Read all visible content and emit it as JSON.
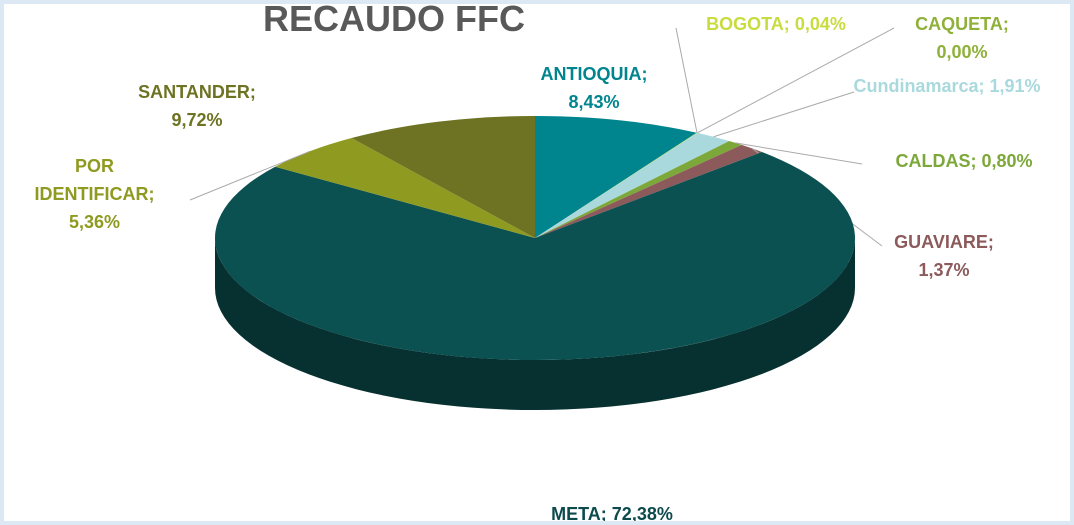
{
  "chart_data": {
    "type": "pie",
    "title": "RECAUDO FFC",
    "categories": [
      "ANTIOQUIA;",
      "BOGOTA;",
      "CAQUETA;",
      "Cundinamarca;",
      "CALDAS;",
      "GUAVIARE;",
      "META;",
      "POR IDENTIFICAR;",
      "SANTANDER;"
    ],
    "values": [
      8.43,
      0.04,
      0.0,
      1.91,
      0.8,
      1.37,
      72.38,
      5.36,
      9.72
    ],
    "value_labels": [
      "8,43%",
      "0,04%",
      "0,00%",
      "1,91%",
      "0,80%",
      "1,37%",
      "72,38%",
      "5,36%",
      "9,72%"
    ],
    "colors": [
      "#00858f",
      "#c9dc3e",
      "#8fb13a",
      "#a9d9dd",
      "#7ca83a",
      "#8c5a5a",
      "#0c5152",
      "#8e9a20",
      "#6d7322"
    ]
  }
}
